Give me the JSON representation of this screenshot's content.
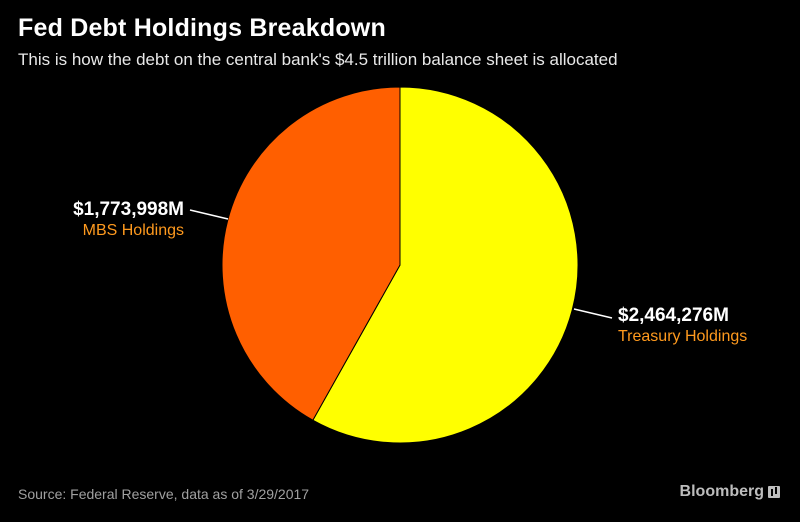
{
  "header": {
    "title": "Fed Debt Holdings Breakdown",
    "subtitle": "This is how the debt on the central bank's $4.5 trillion balance sheet is allocated"
  },
  "chart_data": {
    "type": "pie",
    "title": "Fed Debt Holdings Breakdown",
    "slices": [
      {
        "name": "Treasury Holdings",
        "value": 2464276,
        "value_label": "$2,464,276M",
        "color": "#ffff00"
      },
      {
        "name": "MBS Holdings",
        "value": 1773998,
        "value_label": "$1,773,998M",
        "color": "#ff5f00"
      }
    ],
    "label_color": "#ff9a1e",
    "start": "12 o'clock, clockwise"
  },
  "footer": {
    "source": "Source: Federal Reserve, data as of 3/29/2017",
    "brand": "Bloomberg"
  }
}
